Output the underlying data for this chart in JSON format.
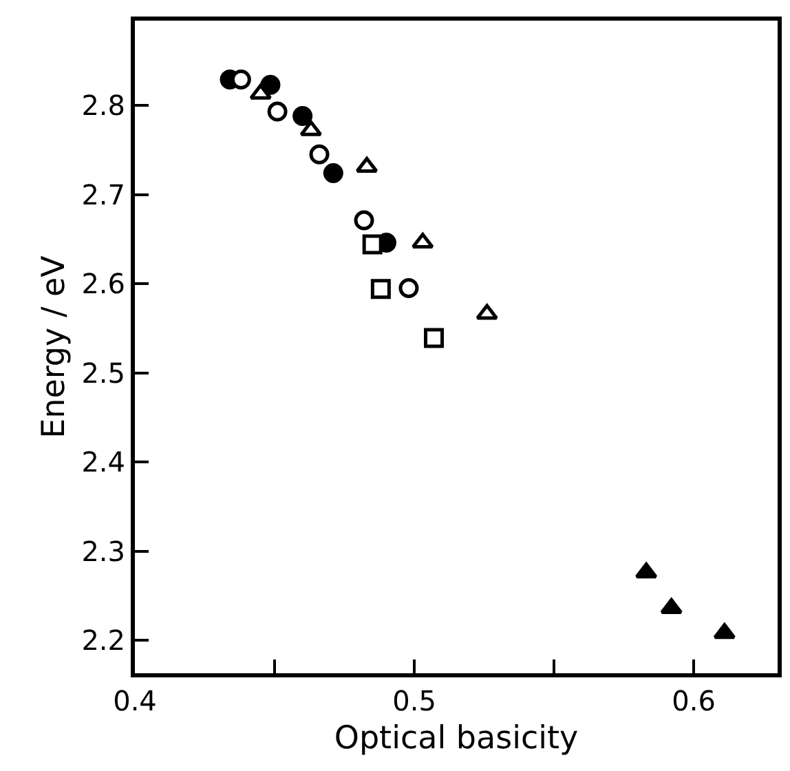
{
  "chart_data": {
    "type": "scatter",
    "xlabel": "Optical basicity",
    "ylabel": "Energy / eV",
    "xlim": [
      0.4,
      0.63
    ],
    "ylim": [
      2.163,
      2.895
    ],
    "xticks": [
      0.4,
      {
        "value": 0.45,
        "label": null
      },
      0.5,
      {
        "value": 0.55,
        "label": null
      },
      0.6
    ],
    "yticks": [
      2.2,
      2.3,
      2.4,
      2.5,
      2.6,
      2.7,
      2.8
    ],
    "legend": false,
    "series": [
      {
        "color": "#000000",
        "marker": "circle",
        "x": [
          0.434,
          0.4485,
          0.46,
          0.471,
          0.49
        ],
        "values": [
          2.829,
          2.823,
          2.788,
          2.724,
          2.646
        ]
      },
      {
        "color": "#ffffff",
        "marker": "circle",
        "x": [
          0.438,
          0.451,
          0.466,
          0.482,
          0.498
        ],
        "values": [
          2.829,
          2.793,
          2.745,
          2.671,
          2.595
        ]
      },
      {
        "color": "#ffffff",
        "marker": "triangle",
        "x": [
          0.445,
          0.463,
          0.483,
          0.503,
          0.526
        ],
        "values": [
          2.813,
          2.772,
          2.731,
          2.646,
          2.566
        ]
      },
      {
        "color": "#ffffff",
        "marker": "square",
        "x": [
          0.485,
          0.488,
          0.507
        ],
        "values": [
          2.644,
          2.594,
          2.539
        ]
      },
      {
        "color": "#000000",
        "marker": "triangle",
        "x": [
          0.583,
          0.592,
          0.611
        ],
        "values": [
          2.276,
          2.236,
          2.208
        ]
      }
    ]
  }
}
